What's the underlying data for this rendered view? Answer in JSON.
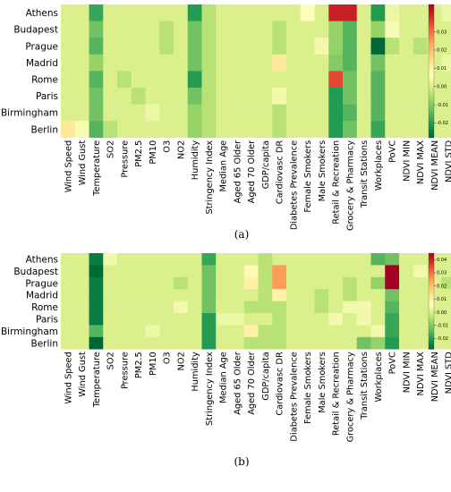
{
  "chart_data": [
    {
      "type": "heatmap",
      "panel_label": "(a)",
      "rows": [
        "Athens",
        "Budapest",
        "Prague",
        "Madrid",
        "Rome",
        "Paris",
        "Birmingham",
        "Berlin"
      ],
      "columns": [
        "Wind Speed",
        "Wind Gust",
        "Temperature",
        "SO2",
        "Pressure",
        "PM2.5",
        "PM10",
        "O3",
        "NO2",
        "Humidity",
        "Stringency Index",
        "Median Age",
        "Aged 65 Older",
        "Aged 70 Older",
        "GDP/capita",
        "Cardiovasc DR",
        "Diabetes Prevalence",
        "Female Smokers",
        "Male Smokers",
        "Retail & Recreation",
        "Grocery & Pharmacy",
        "Transit Stations",
        "Workplaces",
        "PoVC",
        "NDVI MIN",
        "NDVI MAX",
        "NDVI MEAN",
        "NDVI STD"
      ],
      "values": [
        [
          0.0,
          0.0,
          -0.018,
          0.0,
          0.0,
          0.0,
          0.0,
          0.0,
          0.0,
          -0.02,
          -0.004,
          0.0,
          0.0,
          0.0,
          0.0,
          0.0,
          0.0,
          0.006,
          0.0,
          0.04,
          0.04,
          0.0,
          -0.02,
          0.003,
          0.0,
          0.0,
          0.0,
          0.003
        ],
        [
          0.0,
          0.0,
          -0.012,
          0.0,
          0.0,
          0.0,
          0.0,
          -0.004,
          0.0,
          -0.012,
          -0.004,
          0.0,
          0.0,
          0.0,
          0.0,
          -0.004,
          0.0,
          0.0,
          0.0,
          -0.008,
          -0.015,
          0.0,
          -0.008,
          0.005,
          0.0,
          0.0,
          0.0,
          0.0
        ],
        [
          0.0,
          0.0,
          -0.015,
          0.0,
          0.0,
          0.0,
          0.0,
          -0.004,
          0.0,
          -0.012,
          -0.004,
          0.0,
          0.0,
          0.0,
          0.0,
          -0.004,
          0.0,
          0.0,
          0.004,
          -0.008,
          -0.015,
          0.0,
          -0.032,
          -0.004,
          0.0,
          -0.004,
          0.0,
          0.0
        ],
        [
          0.0,
          0.0,
          -0.008,
          0.0,
          0.0,
          0.0,
          0.0,
          0.0,
          0.0,
          -0.012,
          -0.004,
          0.0,
          0.0,
          0.0,
          0.0,
          0.012,
          0.0,
          0.0,
          0.0,
          -0.01,
          -0.015,
          0.0,
          -0.012,
          0.0,
          0.0,
          0.0,
          0.0,
          0.003
        ],
        [
          0.0,
          0.0,
          -0.015,
          0.0,
          -0.004,
          0.0,
          0.0,
          0.0,
          0.0,
          -0.02,
          -0.004,
          0.0,
          0.0,
          0.0,
          0.0,
          0.0,
          0.0,
          0.0,
          0.0,
          0.035,
          -0.012,
          0.0,
          -0.015,
          0.0,
          0.0,
          0.0,
          0.0,
          0.0
        ],
        [
          0.0,
          0.0,
          -0.012,
          0.0,
          0.0,
          -0.004,
          0.0,
          0.0,
          0.0,
          -0.012,
          -0.004,
          0.0,
          0.0,
          0.0,
          0.0,
          0.004,
          0.0,
          0.0,
          0.0,
          -0.02,
          -0.012,
          0.0,
          -0.015,
          0.0,
          0.0,
          0.0,
          0.0,
          0.0
        ],
        [
          0.0,
          0.0,
          -0.012,
          0.0,
          0.0,
          0.0,
          0.003,
          0.0,
          0.0,
          -0.008,
          -0.004,
          0.0,
          0.0,
          0.0,
          0.0,
          -0.004,
          0.0,
          0.0,
          0.0,
          -0.02,
          -0.015,
          0.0,
          -0.015,
          0.0,
          0.0,
          0.0,
          0.0,
          0.0
        ],
        [
          0.012,
          0.005,
          -0.015,
          -0.004,
          0.0,
          0.0,
          0.0,
          0.0,
          0.0,
          -0.008,
          -0.004,
          0.0,
          0.0,
          0.0,
          0.0,
          -0.004,
          0.0,
          0.0,
          0.0,
          -0.02,
          -0.012,
          0.0,
          -0.018,
          0.0,
          0.0,
          0.0,
          0.0,
          0.0
        ]
      ],
      "colorbar": {
        "min": -0.028,
        "max": 0.045,
        "ticks": [
          0.03,
          0.02,
          0.01,
          0.0,
          -0.01,
          -0.02
        ],
        "colormap": "RdYlGn_r"
      }
    },
    {
      "type": "heatmap",
      "panel_label": "(b)",
      "rows": [
        "Athens",
        "Budapest",
        "Prague",
        "Madrid",
        "Rome",
        "Paris",
        "Birmingham",
        "Berlin"
      ],
      "columns": [
        "Wind Speed",
        "Wind Gust",
        "Temperature",
        "SO2",
        "Pressure",
        "PM2.5",
        "PM10",
        "O3",
        "NO2",
        "Humidity",
        "Stringency Index",
        "Median Age",
        "Aged 65 Older",
        "Aged 70 Older",
        "GDP/capita",
        "Cardiovasc DR",
        "Diabetes Prevalence",
        "Female Smokers",
        "Male Smokers",
        "Retail & Recreation",
        "Grocery & Pharmacy",
        "Transit Stations",
        "Workplaces",
        "PoVC",
        "NDVI MIN",
        "NDVI MAX",
        "NDVI MEAN",
        "NDVI STD"
      ],
      "values": [
        [
          0.0,
          0.0,
          -0.025,
          0.004,
          0.0,
          0.0,
          0.0,
          0.0,
          0.0,
          0.0,
          -0.018,
          0.0,
          0.0,
          0.0,
          -0.004,
          0.0,
          0.0,
          0.0,
          0.0,
          0.0,
          0.0,
          0.0,
          -0.015,
          -0.012,
          0.0,
          0.0,
          0.0,
          0.0
        ],
        [
          0.0,
          0.0,
          -0.028,
          0.0,
          0.0,
          0.0,
          0.0,
          0.0,
          0.0,
          0.0,
          -0.012,
          0.0,
          0.0,
          0.008,
          -0.004,
          0.025,
          0.0,
          0.0,
          0.0,
          0.0,
          0.0,
          0.0,
          0.0,
          0.045,
          0.0,
          0.004,
          0.0,
          0.0
        ],
        [
          0.0,
          0.0,
          -0.025,
          0.0,
          0.0,
          0.0,
          0.0,
          0.0,
          -0.004,
          0.0,
          -0.012,
          0.0,
          0.0,
          0.01,
          -0.004,
          0.025,
          0.0,
          0.0,
          0.0,
          0.0,
          -0.004,
          0.0,
          -0.008,
          0.045,
          0.0,
          0.0,
          0.0,
          -0.004
        ],
        [
          0.0,
          0.0,
          -0.025,
          0.0,
          0.0,
          0.0,
          0.0,
          0.0,
          0.0,
          0.0,
          -0.012,
          0.0,
          0.0,
          0.0,
          -0.004,
          0.01,
          0.0,
          0.0,
          -0.004,
          0.0,
          -0.004,
          0.0,
          0.0,
          -0.012,
          0.0,
          0.0,
          0.0,
          0.0
        ],
        [
          0.0,
          0.0,
          -0.025,
          0.0,
          0.0,
          0.0,
          0.0,
          0.0,
          0.004,
          0.0,
          -0.012,
          0.0,
          0.0,
          -0.004,
          -0.004,
          -0.004,
          0.0,
          0.0,
          -0.004,
          0.0,
          0.004,
          0.004,
          0.0,
          -0.015,
          0.0,
          0.0,
          0.0,
          0.0
        ],
        [
          0.0,
          0.0,
          -0.025,
          0.0,
          0.0,
          0.0,
          0.0,
          0.0,
          0.0,
          0.0,
          -0.02,
          0.003,
          0.003,
          0.0,
          0.0,
          -0.004,
          0.0,
          0.0,
          0.0,
          0.004,
          0.0,
          0.004,
          0.0,
          -0.018,
          0.0,
          0.0,
          0.0,
          0.0
        ],
        [
          0.0,
          0.0,
          -0.015,
          0.0,
          0.0,
          0.0,
          0.003,
          0.0,
          0.0,
          0.0,
          -0.02,
          0.0,
          0.0,
          0.01,
          -0.004,
          -0.004,
          0.0,
          0.0,
          0.0,
          0.0,
          0.0,
          0.0,
          0.004,
          -0.018,
          0.0,
          0.0,
          0.0,
          0.0
        ],
        [
          0.0,
          0.0,
          -0.028,
          0.0,
          0.0,
          0.0,
          0.0,
          0.0,
          0.0,
          0.0,
          -0.02,
          0.0,
          0.0,
          -0.004,
          -0.004,
          -0.004,
          0.0,
          0.0,
          0.0,
          0.0,
          0.0,
          -0.012,
          -0.008,
          -0.02,
          0.0,
          0.0,
          0.0,
          0.0
        ]
      ],
      "colorbar": {
        "min": -0.028,
        "max": 0.045,
        "ticks": [
          0.04,
          0.03,
          0.02,
          0.01,
          0.0,
          -0.01,
          -0.02
        ],
        "colormap": "RdYlGn_r"
      }
    }
  ]
}
